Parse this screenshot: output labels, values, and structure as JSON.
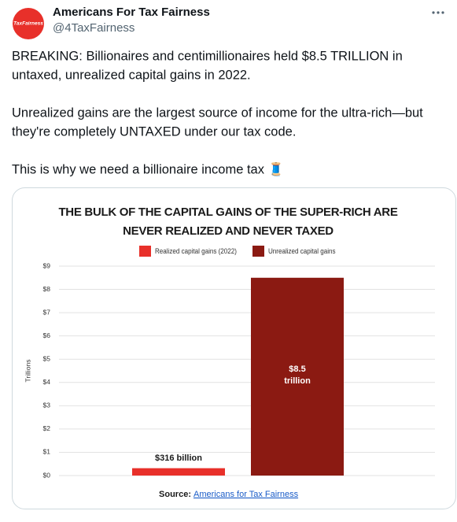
{
  "tweet": {
    "avatar_label": "TaxFairness",
    "author": "Americans For Tax Fairness",
    "handle": "@4TaxFairness",
    "paragraphs": [
      [
        "BREAKING: Billionaires and centimillionaires held $8.5 TRILLION in",
        "untaxed, unrealized capital gains in 2022."
      ],
      [
        "Unrealized gains are the largest source of income for the ultra-rich—but",
        "they're completely UNTAXED under our tax code."
      ],
      [
        "This is why we need a billionaire income tax 🧵"
      ]
    ]
  },
  "chart_data": {
    "type": "bar",
    "title": "THE BULK OF THE CAPITAL GAINS OF THE SUPER-RICH ARE NEVER REALIZED AND NEVER TAXED",
    "categories": [
      null,
      null
    ],
    "series": [
      {
        "name": "Realized capital gains (2022)",
        "color": "#e8302a",
        "values": [
          0.316,
          null
        ],
        "value_labels": [
          "$316 billion",
          null
        ]
      },
      {
        "name": "Unrealized capital gains",
        "color": "#8b1a12",
        "values": [
          null,
          8.5
        ],
        "value_labels": [
          null,
          "$8.5 trillion"
        ]
      }
    ],
    "y_label": "Trillions",
    "ylim": [
      0,
      9
    ],
    "yticks": [
      {
        "value": 0,
        "label": "$0"
      },
      {
        "value": 1,
        "label": "$1"
      },
      {
        "value": 2,
        "label": "$2"
      },
      {
        "value": 3,
        "label": "$3"
      },
      {
        "value": 4,
        "label": "$4"
      },
      {
        "value": 5,
        "label": "$5"
      },
      {
        "value": 6,
        "label": "$6"
      },
      {
        "value": 7,
        "label": "$7"
      },
      {
        "value": 8,
        "label": "$8"
      },
      {
        "value": 9,
        "label": "$9"
      }
    ],
    "grid": true,
    "source_label": "Source:",
    "source_link": "Americans for Tax Fairness"
  }
}
